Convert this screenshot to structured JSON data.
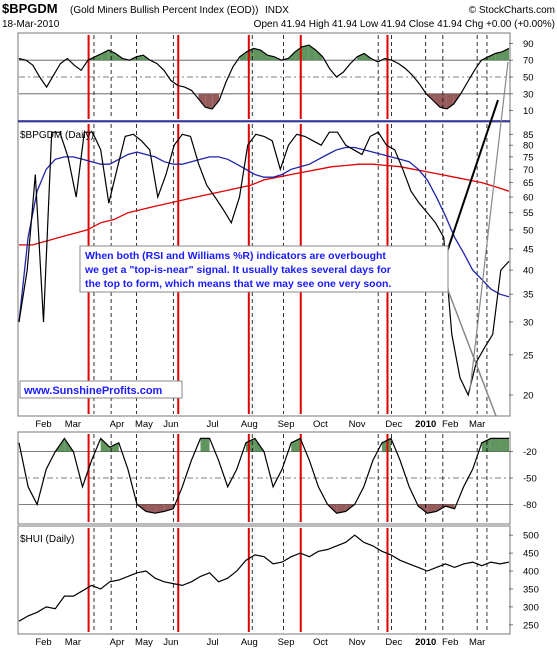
{
  "header": {
    "symbol": "$BPGDM",
    "name": "(Gold Miners Bullish Percent Index (EOD))",
    "exchange": "INDX",
    "source": "© StockCharts.com",
    "date": "18-Mar-2010",
    "ohlc": "Open 41.94  High 41.94  Low 41.94  Close 41.94  Chg +0.00 (+0.00%)"
  },
  "annotation": {
    "lines": [
      "When both (RSI and Williams %R) indicators are overbought",
      "we get a \"top-is-near\" signal. It usually takes several days for",
      "the top to form, which means that we may see one very soon."
    ],
    "website": "www.SunshineProfits.com"
  },
  "colors": {
    "price": "#000000",
    "ma_short": "#1f24a8",
    "ma_long": "#e00000",
    "overbought_fill": "#4f8a4f",
    "oversold_fill": "#8b4a4a",
    "signal_line": "#e00000",
    "annotation_text": "#1a1aff"
  },
  "chart_data": [
    {
      "type": "line",
      "panel": "RSI",
      "title": "",
      "y_ticks": [
        10,
        30,
        50,
        70,
        90
      ],
      "ylim": [
        0,
        100
      ],
      "reference_lines": [
        30,
        50,
        70
      ],
      "values": [
        72,
        70,
        64,
        50,
        38,
        52,
        66,
        72,
        64,
        58,
        70,
        74,
        78,
        82,
        78,
        72,
        70,
        74,
        76,
        70,
        66,
        58,
        46,
        40,
        38,
        34,
        24,
        14,
        12,
        22,
        44,
        62,
        74,
        80,
        84,
        82,
        76,
        74,
        70,
        72,
        80,
        86,
        88,
        82,
        74,
        60,
        50,
        56,
        66,
        74,
        78,
        72,
        68,
        72,
        70,
        66,
        60,
        52,
        42,
        30,
        22,
        14,
        12,
        18,
        30,
        44,
        58,
        70,
        74,
        78,
        80,
        84
      ]
    },
    {
      "type": "line",
      "panel": "price",
      "title": "$BPGDM (Daily)",
      "y_ticks": [
        20,
        25,
        30,
        35,
        40,
        45,
        50,
        55,
        60,
        65,
        70,
        75,
        80,
        85
      ],
      "ylim": [
        18,
        90
      ],
      "log_scale": true,
      "x_tick_labels": [
        "Feb",
        "Mar",
        "Apr",
        "May",
        "Jun",
        "Jul",
        "Aug",
        "Sep",
        "Oct",
        "Nov",
        "Dec",
        "2010",
        "Feb",
        "Mar"
      ],
      "series": [
        {
          "role": "price",
          "values": [
            30,
            40,
            68,
            30,
            86,
            86,
            75,
            60,
            86,
            86,
            78,
            58,
            70,
            84,
            85,
            82,
            78,
            60,
            68,
            80,
            85,
            84,
            72,
            64,
            60,
            56,
            52,
            60,
            80,
            85,
            84,
            82,
            70,
            80,
            85,
            84,
            82,
            80,
            86,
            86,
            80,
            78,
            76,
            84,
            86,
            80,
            78,
            70,
            62,
            58,
            55,
            52,
            48,
            28,
            22,
            20,
            24,
            26,
            28,
            40,
            42
          ]
        },
        {
          "role": "ma_short",
          "values": [
            30,
            48,
            62,
            70,
            74,
            75,
            75,
            74,
            73,
            72,
            72,
            74,
            76,
            77,
            76,
            75,
            73,
            72,
            72,
            73,
            74,
            75,
            75,
            74,
            72,
            70,
            68,
            67,
            67,
            68,
            70,
            71,
            72,
            74,
            76,
            78,
            79,
            79,
            78,
            77,
            76,
            75,
            74,
            73,
            70,
            66,
            60,
            54,
            48,
            44,
            40,
            38,
            36,
            35,
            34.5
          ]
        },
        {
          "role": "ma_long",
          "values": [
            46,
            46,
            47,
            48,
            49,
            50,
            52,
            53,
            55,
            56,
            57,
            58,
            59,
            60,
            61,
            62,
            63,
            64,
            66,
            67,
            68,
            69,
            70,
            71,
            71.5,
            72,
            72,
            71.5,
            71,
            70,
            69,
            68,
            67,
            66,
            65,
            63.5,
            62
          ]
        }
      ]
    },
    {
      "type": "line",
      "panel": "Williams %R",
      "title": "",
      "y_ticks": [
        -20,
        -50,
        -80
      ],
      "ylim": [
        -100,
        0
      ],
      "reference_lines": [
        -20,
        -50,
        -80
      ],
      "values": [
        -10,
        -60,
        -80,
        -40,
        -20,
        -5,
        -20,
        -60,
        -30,
        -5,
        -15,
        -10,
        -40,
        -80,
        -88,
        -90,
        -88,
        -85,
        -60,
        -30,
        -5,
        -5,
        -30,
        -60,
        -40,
        -10,
        -5,
        -20,
        -60,
        -40,
        -10,
        -5,
        -30,
        -60,
        -80,
        -90,
        -88,
        -80,
        -60,
        -30,
        -10,
        -5,
        -30,
        -60,
        -82,
        -90,
        -88,
        -82,
        -85,
        -60,
        -40,
        -10,
        -5,
        -5,
        -5
      ]
    },
    {
      "type": "line",
      "panel": "price",
      "title": "$HUI (Daily)",
      "y_ticks": [
        250,
        300,
        350,
        400,
        450,
        500
      ],
      "ylim": [
        230,
        520
      ],
      "x_tick_labels": [
        "Feb",
        "Mar",
        "Apr",
        "May",
        "Jun",
        "Jul",
        "Aug",
        "Sep",
        "Oct",
        "Nov",
        "Dec",
        "2010",
        "Feb",
        "Mar"
      ],
      "values": [
        260,
        275,
        285,
        300,
        295,
        330,
        330,
        345,
        360,
        350,
        370,
        375,
        385,
        395,
        400,
        380,
        370,
        365,
        360,
        370,
        385,
        395,
        370,
        380,
        400,
        430,
        445,
        440,
        420,
        425,
        440,
        450,
        440,
        455,
        460,
        470,
        480,
        500,
        480,
        470,
        455,
        445,
        430,
        420,
        410,
        400,
        410,
        420,
        410,
        420,
        425,
        415,
        425,
        420,
        425
      ]
    }
  ]
}
